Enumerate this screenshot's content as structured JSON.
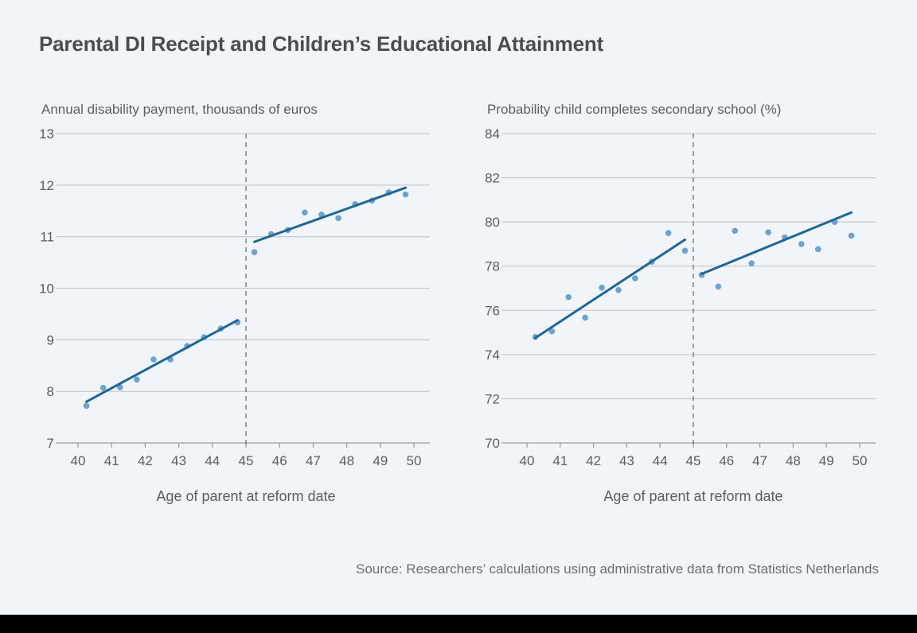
{
  "title": "Parental DI Receipt and Children’s Educational Attainment",
  "source": "Source: Researchers’ calculations using administrative data from Statistics Netherlands",
  "colors": {
    "background": "#f1f5fa",
    "point": "#6fa3cf",
    "fit_line": "#1f6699",
    "grid": "#c9ccd0",
    "cutoff_line": "#6b6e73",
    "text": "#5a5d63"
  },
  "chart_data": [
    {
      "type": "scatter",
      "title": "Annual disability payment, thousands of euros",
      "xlabel": "Age of parent at reform date",
      "ylabel": "Annual disability payment, thousands of euros",
      "xlim": [
        39.8,
        50.4
      ],
      "ylim": [
        7,
        13
      ],
      "xticks": [
        40,
        41,
        42,
        43,
        44,
        45,
        46,
        47,
        48,
        49,
        50
      ],
      "yticks": [
        7,
        8,
        9,
        10,
        11,
        12,
        13
      ],
      "grid": "horizontal",
      "cutoff_x": 45,
      "points": {
        "x": [
          40.25,
          40.75,
          41.25,
          41.75,
          42.25,
          42.75,
          43.25,
          43.75,
          44.25,
          44.75,
          45.25,
          45.75,
          46.25,
          46.75,
          47.25,
          47.75,
          48.25,
          48.75,
          49.25,
          49.75
        ],
        "y": [
          7.72,
          8.07,
          8.08,
          8.23,
          8.62,
          8.62,
          8.88,
          9.05,
          9.22,
          9.34,
          10.7,
          11.05,
          11.13,
          11.47,
          11.43,
          11.36,
          11.63,
          11.7,
          11.86,
          11.82
        ]
      },
      "fit_lines": [
        {
          "name": "below-45",
          "x": [
            40.25,
            44.75
          ],
          "y": [
            7.8,
            9.38
          ]
        },
        {
          "name": "above-45",
          "x": [
            45.25,
            49.75
          ],
          "y": [
            10.9,
            11.95
          ]
        }
      ]
    },
    {
      "type": "scatter",
      "title": "Probability child completes secondary school (%)",
      "xlabel": "Age of parent at reform date",
      "ylabel": "Probability child completes secondary school (%)",
      "xlim": [
        39.8,
        50.4
      ],
      "ylim": [
        70,
        84
      ],
      "xticks": [
        40,
        41,
        42,
        43,
        44,
        45,
        46,
        47,
        48,
        49,
        50
      ],
      "yticks": [
        70,
        72,
        74,
        76,
        78,
        80,
        82,
        84
      ],
      "grid": "horizontal",
      "cutoff_x": 45,
      "points": {
        "x": [
          40.25,
          40.75,
          41.25,
          41.75,
          42.25,
          42.75,
          43.25,
          43.75,
          44.25,
          44.75,
          45.25,
          45.75,
          46.25,
          46.75,
          47.25,
          47.75,
          48.25,
          48.75,
          49.25,
          49.75
        ],
        "y": [
          74.8,
          75.05,
          76.6,
          75.67,
          77.03,
          76.92,
          77.45,
          78.2,
          79.5,
          78.7,
          77.6,
          77.08,
          79.6,
          78.13,
          79.53,
          79.3,
          79.0,
          78.77,
          80.0,
          79.38
        ]
      },
      "fit_lines": [
        {
          "name": "below-45",
          "x": [
            40.25,
            44.75
          ],
          "y": [
            74.75,
            79.2
          ]
        },
        {
          "name": "above-45",
          "x": [
            45.25,
            49.75
          ],
          "y": [
            77.65,
            80.43
          ]
        }
      ]
    }
  ]
}
